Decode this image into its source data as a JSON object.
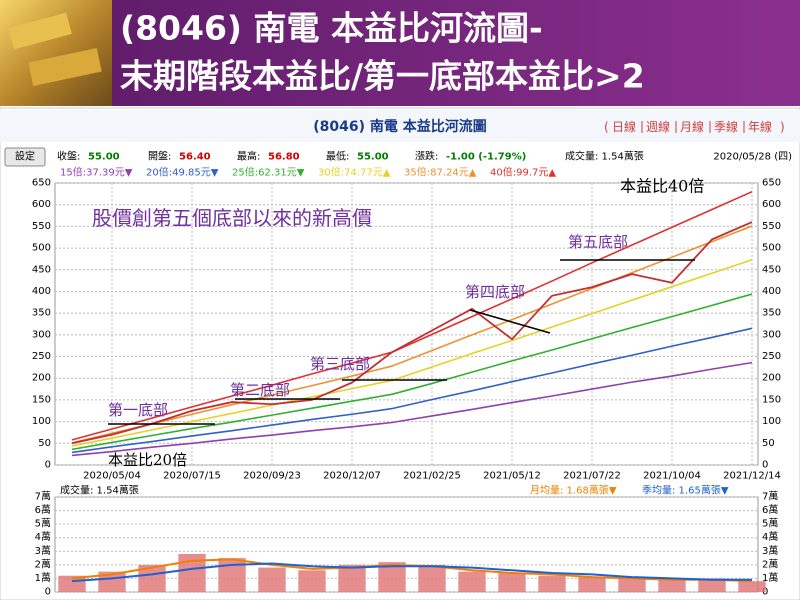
{
  "header": {
    "title_lines": [
      "(8046) 南電 本益比河流圖-",
      "末期階段本益比/第一底部本益比>2"
    ]
  },
  "chart_data": [
    {
      "type": "line",
      "title": "(8046) 南電 本益比河流圖",
      "tabs": [
        "日線",
        "週線",
        "月線",
        "季線",
        "年線"
      ],
      "tab_brackets": [
        "(",
        ")"
      ],
      "settings_button": "設定",
      "info": [
        {
          "label": "收盤:",
          "value": "55.00",
          "color": "#008000"
        },
        {
          "label": "開盤:",
          "value": "56.40",
          "color": "#d00000"
        },
        {
          "label": "最高:",
          "value": "56.80",
          "color": "#d00000"
        },
        {
          "label": "最低:",
          "value": "55.00",
          "color": "#008000"
        },
        {
          "label": "漲跌:",
          "value": "-1.00 (-1.79%)",
          "color": "#008000"
        }
      ],
      "volume_info": "成交量: 1.54萬張",
      "date": "2020/05/28 (四)",
      "categories": [
        null,
        "2020/05/04",
        null,
        "2020/07/15",
        null,
        "2020/09/23",
        null,
        "2020/12/07",
        null,
        "2021/02/25",
        null,
        "2021/05/12",
        null,
        "2021/07/22",
        null,
        "2021/10/04",
        null,
        "2021/12/14"
      ],
      "values": [
        50,
        70,
        95,
        125,
        145,
        140,
        150,
        190,
        260,
        310,
        360,
        290,
        390,
        410,
        440,
        420,
        520,
        560
      ],
      "color": "#c03030",
      "series": [
        {
          "name": "15倍:37.39元▼",
          "color": "#9040b0",
          "values": [
            22,
            31,
            41,
            50,
            60,
            69,
            79,
            88,
            98,
            113,
            128,
            144,
            159,
            175,
            191,
            205,
            221,
            236
          ]
        },
        {
          "name": "20倍:49.85元▼",
          "color": "#3060c8",
          "values": [
            29,
            42,
            54,
            67,
            79,
            92,
            105,
            117,
            130,
            151,
            171,
            192,
            212,
            233,
            253,
            274,
            294,
            315
          ]
        },
        {
          "name": "25倍:62.31元▼",
          "color": "#30b030",
          "values": [
            36,
            52,
            68,
            84,
            99,
            115,
            131,
            147,
            163,
            188,
            214,
            240,
            265,
            291,
            317,
            342,
            368,
            394
          ]
        },
        {
          "name": "30倍:74.77元▲",
          "color": "#e8d020",
          "values": [
            44,
            62,
            81,
            100,
            119,
            138,
            157,
            176,
            195,
            226,
            257,
            287,
            318,
            349,
            380,
            411,
            442,
            473
          ]
        },
        {
          "name": "35倍:87.24元▲",
          "color": "#f09030",
          "values": [
            51,
            73,
            95,
            117,
            139,
            161,
            183,
            205,
            228,
            264,
            300,
            335,
            371,
            407,
            443,
            479,
            515,
            551
          ]
        },
        {
          "name": "40倍:99.7元▲",
          "color": "#e03030",
          "values": [
            58,
            83,
            108,
            134,
            159,
            184,
            210,
            235,
            260,
            301,
            342,
            383,
            424,
            466,
            507,
            548,
            589,
            630
          ]
        }
      ],
      "ylim": [
        0,
        650
      ],
      "yticks": [
        0,
        50,
        100,
        150,
        200,
        250,
        300,
        350,
        400,
        450,
        500,
        550,
        600,
        650
      ],
      "grid": true,
      "annotations": [
        "股價創第五個底部以來的新高價",
        "第一底部",
        "第二底部",
        "第三底部",
        "第四底部",
        "第五底部",
        "本益比40倍",
        "本益比20倍"
      ]
    },
    {
      "type": "bar",
      "title": "成交量: 1.54萬張",
      "values": [
        1.2,
        1.5,
        2.0,
        2.8,
        2.5,
        1.8,
        1.6,
        2.0,
        2.2,
        2.0,
        1.5,
        1.4,
        1.2,
        1.1,
        1.0,
        0.9,
        1.0,
        0.8
      ],
      "color": "#e07070",
      "series": [
        {
          "name": "月均量: 1.68萬張▼",
          "color": "#f08000",
          "values": [
            1.0,
            1.3,
            1.8,
            2.3,
            2.4,
            2.0,
            1.7,
            1.8,
            2.0,
            1.9,
            1.6,
            1.4,
            1.3,
            1.1,
            1.0,
            0.9,
            0.9,
            0.8
          ]
        },
        {
          "name": "季均量: 1.65萬張▼",
          "color": "#2060d0",
          "values": [
            0.8,
            1.0,
            1.3,
            1.7,
            2.0,
            2.1,
            1.9,
            1.8,
            1.9,
            1.9,
            1.8,
            1.6,
            1.4,
            1.3,
            1.1,
            1.0,
            0.9,
            0.9
          ]
        }
      ],
      "ylim": [
        0,
        7
      ],
      "yticks": [
        0,
        {
          "value": 1,
          "label": "1萬"
        },
        {
          "value": 2,
          "label": "2萬"
        },
        {
          "value": 3,
          "label": "3萬"
        },
        {
          "value": 4,
          "label": "4萬"
        },
        {
          "value": 5,
          "label": "5萬"
        },
        {
          "value": 6,
          "label": "6萬"
        },
        {
          "value": 7,
          "label": "7萬"
        }
      ],
      "grid": true
    }
  ]
}
